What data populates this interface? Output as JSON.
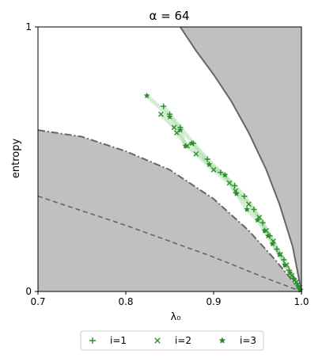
{
  "chart_data": {
    "type": "scatter",
    "title": "α = 64",
    "xlabel": "λ₀",
    "ylabel": "entropy",
    "xlim": [
      0.7,
      1.0
    ],
    "ylim": [
      0,
      1
    ],
    "x_ticks": [
      {
        "value": 0.7,
        "label": "0.7"
      },
      {
        "value": 0.8,
        "label": "0.8"
      },
      {
        "value": 0.9,
        "label": "0.9"
      },
      {
        "value": 1.0,
        "label": "1.0"
      }
    ],
    "y_ticks": [
      {
        "value": 0,
        "label": "0"
      },
      {
        "value": 1,
        "label": "1"
      }
    ],
    "grid": false,
    "legend_position": "bottom-center",
    "colors": {
      "series": "#2e8b2e",
      "band": "#9ed99e",
      "shade": "#c0c0c0",
      "boundary": "#666666"
    },
    "regions": {
      "upper_boundary": [
        {
          "x": 0.862,
          "y": 1.0
        },
        {
          "x": 0.88,
          "y": 0.91
        },
        {
          "x": 0.9,
          "y": 0.82
        },
        {
          "x": 0.92,
          "y": 0.72
        },
        {
          "x": 0.94,
          "y": 0.6
        },
        {
          "x": 0.96,
          "y": 0.46
        },
        {
          "x": 0.975,
          "y": 0.33
        },
        {
          "x": 0.99,
          "y": 0.17
        },
        {
          "x": 1.0,
          "y": 0.0
        }
      ],
      "lower_boundary": [
        {
          "x": 0.7,
          "y": 0.61
        },
        {
          "x": 0.75,
          "y": 0.585
        },
        {
          "x": 0.8,
          "y": 0.53
        },
        {
          "x": 0.85,
          "y": 0.46
        },
        {
          "x": 0.9,
          "y": 0.35
        },
        {
          "x": 0.94,
          "y": 0.23
        },
        {
          "x": 0.97,
          "y": 0.12
        },
        {
          "x": 0.99,
          "y": 0.04
        },
        {
          "x": 1.0,
          "y": 0.0
        }
      ],
      "dashed_reference": [
        {
          "x": 0.7,
          "y": 0.36
        },
        {
          "x": 0.8,
          "y": 0.25
        },
        {
          "x": 0.9,
          "y": 0.13
        },
        {
          "x": 0.96,
          "y": 0.05
        },
        {
          "x": 1.0,
          "y": 0.0
        }
      ]
    },
    "series": [
      {
        "name": "i=1",
        "marker": "plus",
        "points": [
          {
            "x": 0.843,
            "y": 0.7
          },
          {
            "x": 0.85,
            "y": 0.67
          },
          {
            "x": 0.862,
            "y": 0.62
          },
          {
            "x": 0.877,
            "y": 0.56
          },
          {
            "x": 0.893,
            "y": 0.5
          },
          {
            "x": 0.908,
            "y": 0.45
          },
          {
            "x": 0.924,
            "y": 0.4
          },
          {
            "x": 0.935,
            "y": 0.36
          },
          {
            "x": 0.946,
            "y": 0.31
          },
          {
            "x": 0.956,
            "y": 0.26
          },
          {
            "x": 0.964,
            "y": 0.21
          },
          {
            "x": 0.972,
            "y": 0.16
          },
          {
            "x": 0.98,
            "y": 0.12
          },
          {
            "x": 0.986,
            "y": 0.08
          },
          {
            "x": 0.991,
            "y": 0.05
          },
          {
            "x": 0.995,
            "y": 0.03
          },
          {
            "x": 0.998,
            "y": 0.01
          }
        ]
      },
      {
        "name": "i=2",
        "marker": "x",
        "points": [
          {
            "x": 0.84,
            "y": 0.67
          },
          {
            "x": 0.855,
            "y": 0.62
          },
          {
            "x": 0.858,
            "y": 0.6
          },
          {
            "x": 0.87,
            "y": 0.55
          },
          {
            "x": 0.88,
            "y": 0.52
          },
          {
            "x": 0.9,
            "y": 0.46
          },
          {
            "x": 0.918,
            "y": 0.41
          },
          {
            "x": 0.925,
            "y": 0.38
          },
          {
            "x": 0.94,
            "y": 0.33
          },
          {
            "x": 0.952,
            "y": 0.28
          },
          {
            "x": 0.96,
            "y": 0.23
          },
          {
            "x": 0.968,
            "y": 0.19
          },
          {
            "x": 0.976,
            "y": 0.14
          },
          {
            "x": 0.983,
            "y": 0.1
          },
          {
            "x": 0.989,
            "y": 0.06
          },
          {
            "x": 0.994,
            "y": 0.035
          },
          {
            "x": 0.998,
            "y": 0.015
          }
        ]
      },
      {
        "name": "i=3",
        "marker": "star",
        "points": [
          {
            "x": 0.824,
            "y": 0.74
          },
          {
            "x": 0.85,
            "y": 0.66
          },
          {
            "x": 0.862,
            "y": 0.61
          },
          {
            "x": 0.868,
            "y": 0.55
          },
          {
            "x": 0.875,
            "y": 0.56
          },
          {
            "x": 0.895,
            "y": 0.48
          },
          {
            "x": 0.913,
            "y": 0.44
          },
          {
            "x": 0.926,
            "y": 0.37
          },
          {
            "x": 0.938,
            "y": 0.31
          },
          {
            "x": 0.95,
            "y": 0.27
          },
          {
            "x": 0.958,
            "y": 0.23
          },
          {
            "x": 0.962,
            "y": 0.21
          },
          {
            "x": 0.967,
            "y": 0.18
          },
          {
            "x": 0.975,
            "y": 0.14
          },
          {
            "x": 0.981,
            "y": 0.1
          },
          {
            "x": 0.987,
            "y": 0.07
          },
          {
            "x": 0.992,
            "y": 0.045
          },
          {
            "x": 0.996,
            "y": 0.02
          },
          {
            "x": 0.999,
            "y": 0.005
          }
        ]
      }
    ]
  }
}
